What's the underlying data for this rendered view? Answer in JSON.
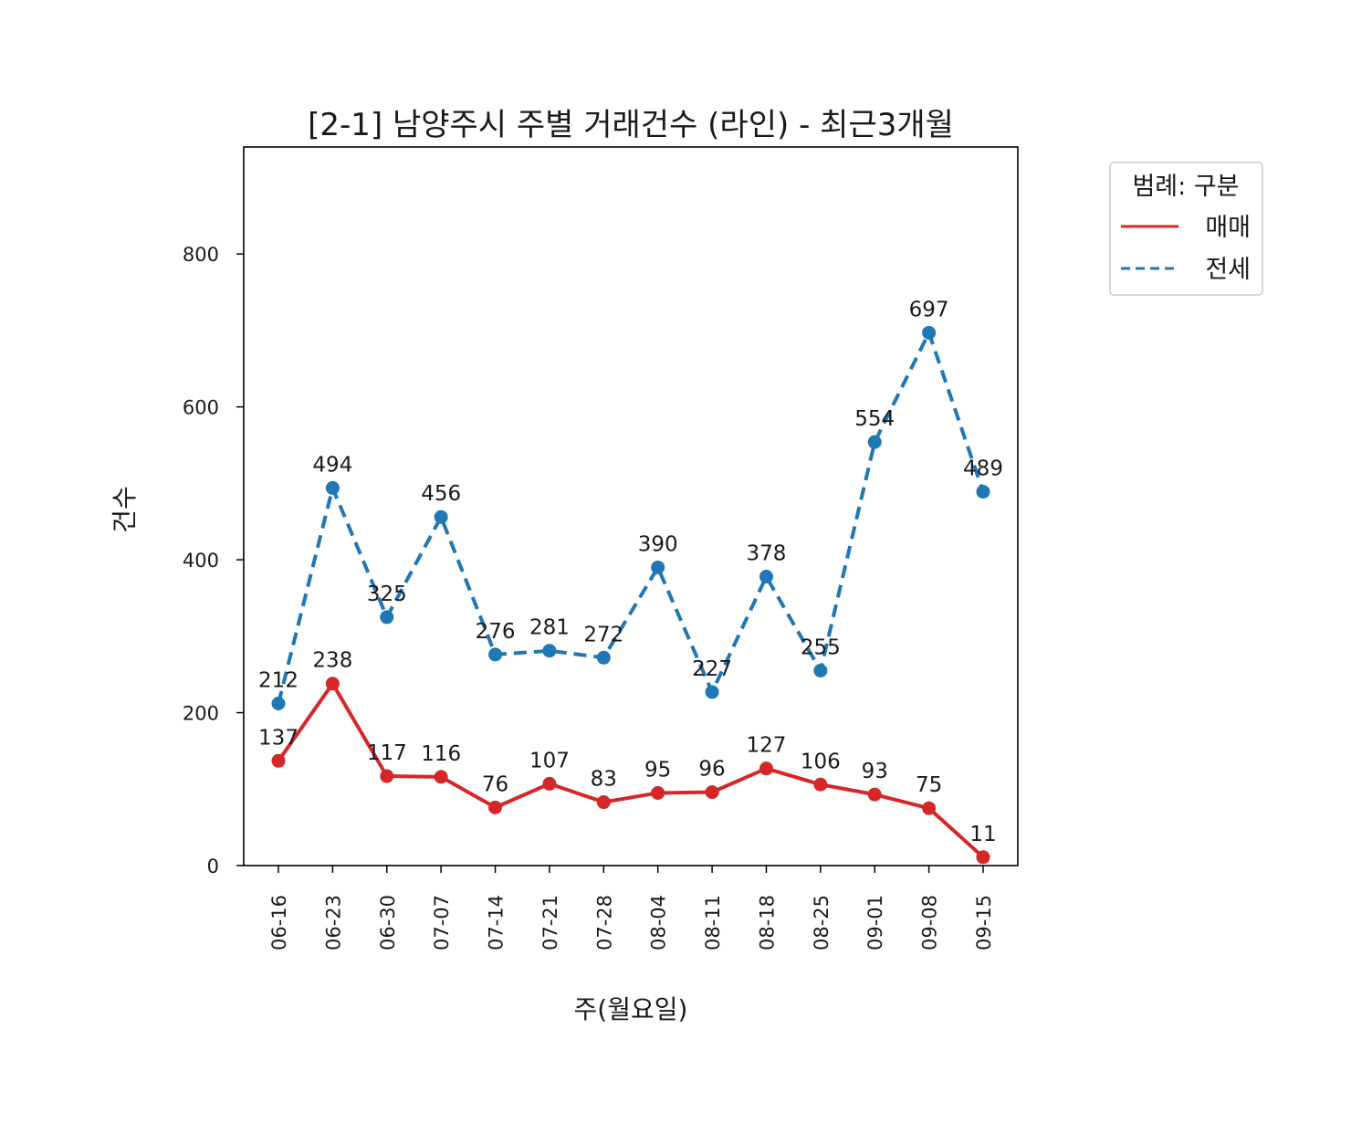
{
  "chart_data": {
    "type": "line",
    "title": "[2-1] 남양주시 주별 거래건수 (라인) - 최근3개월",
    "xlabel": "주(월요일)",
    "ylabel": "건수",
    "categories": [
      "06-16",
      "06-23",
      "06-30",
      "07-07",
      "07-14",
      "07-21",
      "07-28",
      "08-04",
      "08-11",
      "08-18",
      "08-25",
      "09-01",
      "09-08",
      "09-15"
    ],
    "ylim": [
      0,
      940
    ],
    "yticks": [
      0,
      200,
      400,
      600,
      800
    ],
    "grid": false,
    "legend": {
      "title": "범례: 구분",
      "placement": "outside-top-right"
    },
    "series": [
      {
        "name": "매매",
        "color": "#d62728",
        "line_style": "solid",
        "values": [
          137,
          238,
          117,
          116,
          76,
          107,
          83,
          95,
          96,
          127,
          106,
          93,
          75,
          11
        ]
      },
      {
        "name": "전세",
        "color": "#1f77b4",
        "line_style": "dashed",
        "values": [
          212,
          494,
          325,
          456,
          276,
          281,
          272,
          390,
          227,
          378,
          255,
          554,
          697,
          489
        ]
      }
    ]
  }
}
